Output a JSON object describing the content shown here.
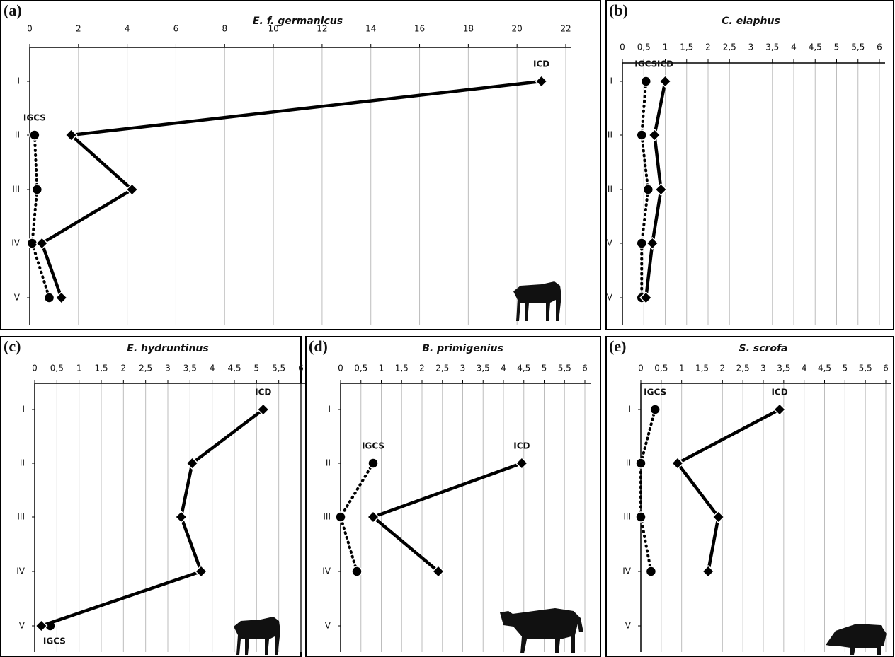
{
  "chart_data": [
    {
      "type": "line",
      "panel": "(a)",
      "title": "E. f. germanicus",
      "orientation": "horizontal-values",
      "categories": [
        "I",
        "II",
        "III",
        "IV",
        "V"
      ],
      "xlim": [
        0,
        22
      ],
      "xticks": [
        0,
        2,
        4,
        6,
        8,
        10,
        12,
        14,
        16,
        18,
        20,
        22
      ],
      "grid": true,
      "series": [
        {
          "name": "IGCS",
          "color": "#000000",
          "style": "dotted",
          "marker": "circle",
          "values": [
            null,
            0.2,
            0.3,
            0.1,
            0.8
          ]
        },
        {
          "name": "ICD",
          "color": "#000000",
          "style": "solid",
          "marker": "diamond",
          "values": [
            21,
            1.7,
            4.2,
            0.5,
            1.3
          ]
        }
      ]
    },
    {
      "type": "line",
      "panel": "(b)",
      "title": "C. elaphus",
      "orientation": "horizontal-values",
      "categories": [
        "I",
        "II",
        "III",
        "IV",
        "V"
      ],
      "xlim": [
        0,
        6
      ],
      "xticks": [
        0,
        {
          "value": 0.5,
          "label": "0,5"
        },
        1,
        {
          "value": 1.5,
          "label": "1,5"
        },
        2,
        {
          "value": 2.5,
          "label": "2,5"
        },
        3,
        {
          "value": 3.5,
          "label": "3,5"
        },
        4,
        {
          "value": 4.5,
          "label": "4,5"
        },
        5,
        {
          "value": 5.5,
          "label": "5,5"
        },
        6
      ],
      "grid": true,
      "series": [
        {
          "name": "IGCS",
          "color": "#000000",
          "style": "dotted",
          "marker": "circle",
          "values": [
            0.55,
            0.45,
            0.6,
            0.45,
            0.45
          ]
        },
        {
          "name": "ICD",
          "color": "#000000",
          "style": "solid",
          "marker": "diamond",
          "values": [
            1.0,
            0.75,
            0.9,
            0.7,
            0.55
          ]
        }
      ]
    },
    {
      "type": "line",
      "panel": "(c)",
      "title": "E. hydruntinus",
      "orientation": "horizontal-values",
      "categories": [
        "I",
        "II",
        "III",
        "IV",
        "V"
      ],
      "xlim": [
        0,
        6
      ],
      "xticks": [
        0,
        {
          "value": 0.5,
          "label": "0,5"
        },
        1,
        {
          "value": 1.5,
          "label": "1,5"
        },
        2,
        {
          "value": 2.5,
          "label": "2,5"
        },
        3,
        {
          "value": 3.5,
          "label": "3,5"
        },
        4,
        {
          "value": 4.5,
          "label": "4,5"
        },
        5,
        {
          "value": 5.5,
          "label": "5,5"
        },
        6
      ],
      "grid": true,
      "series": [
        {
          "name": "IGCS",
          "color": "#000000",
          "style": "dotted",
          "marker": "circle",
          "values": [
            null,
            null,
            null,
            null,
            0.35
          ]
        },
        {
          "name": "ICD",
          "color": "#000000",
          "style": "solid",
          "marker": "diamond",
          "values": [
            5.15,
            3.55,
            3.3,
            3.75,
            0.15
          ]
        }
      ]
    },
    {
      "type": "line",
      "panel": "(d)",
      "title": "B. primigenius",
      "orientation": "horizontal-values",
      "categories": [
        "I",
        "II",
        "III",
        "IV",
        "V"
      ],
      "xlim": [
        0,
        6
      ],
      "xticks": [
        0,
        {
          "value": 0.5,
          "label": "0,5"
        },
        1,
        {
          "value": 1.5,
          "label": "1,5"
        },
        2,
        {
          "value": 2.5,
          "label": "2,5"
        },
        3,
        {
          "value": 3.5,
          "label": "3,5"
        },
        4,
        {
          "value": 4.5,
          "label": "4,5"
        },
        5,
        {
          "value": 5.5,
          "label": "5,5"
        },
        6
      ],
      "grid": true,
      "series": [
        {
          "name": "IGCS",
          "color": "#000000",
          "style": "dotted",
          "marker": "circle",
          "values": [
            null,
            0.8,
            0,
            0.4,
            null
          ]
        },
        {
          "name": "ICD",
          "color": "#000000",
          "style": "solid",
          "marker": "diamond",
          "values": [
            null,
            4.45,
            0.8,
            2.4,
            null
          ]
        }
      ]
    },
    {
      "type": "line",
      "panel": "(e)",
      "title": "S. scrofa",
      "orientation": "horizontal-values",
      "categories": [
        "I",
        "II",
        "III",
        "IV",
        "V"
      ],
      "xlim": [
        0,
        6
      ],
      "xticks": [
        0,
        {
          "value": 0.5,
          "label": "0,5"
        },
        1,
        {
          "value": 1.5,
          "label": "1,5"
        },
        2,
        {
          "value": 2.5,
          "label": "2,5"
        },
        3,
        {
          "value": 3.5,
          "label": "3,5"
        },
        4,
        {
          "value": 4.5,
          "label": "4,5"
        },
        5,
        {
          "value": 5.5,
          "label": "5,5"
        },
        6
      ],
      "grid": true,
      "series": [
        {
          "name": "IGCS",
          "color": "#000000",
          "style": "dotted",
          "marker": "circle",
          "values": [
            0.35,
            0,
            0,
            0.25,
            null
          ]
        },
        {
          "name": "ICD",
          "color": "#000000",
          "style": "solid",
          "marker": "diamond",
          "values": [
            3.4,
            0.9,
            1.9,
            1.65,
            null
          ]
        }
      ]
    }
  ]
}
